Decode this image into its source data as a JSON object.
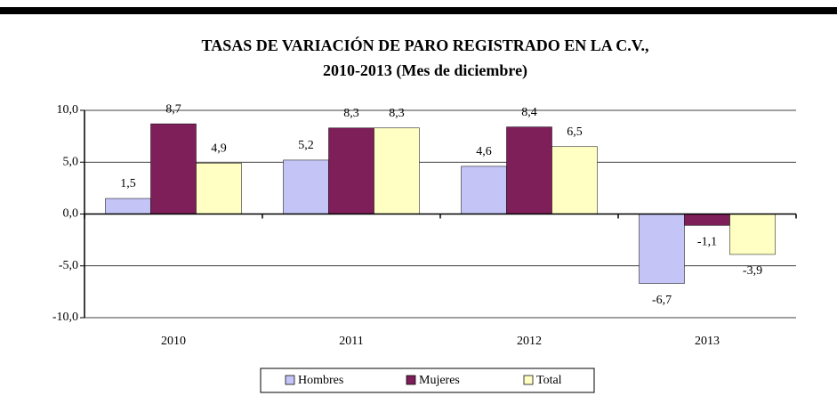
{
  "chart_data": {
    "type": "bar",
    "title": [
      "TASAS DE VARIACIÓN DE PARO REGISTRADO EN LA C.V.,",
      "2010-2013 (Mes de diciembre)"
    ],
    "categories": [
      "2010",
      "2011",
      "2012",
      "2013"
    ],
    "series": [
      {
        "name": "Hombres",
        "color": "#c4c4f6",
        "values": [
          1.5,
          5.2,
          4.6,
          -6.7
        ],
        "value_labels": [
          "1,5",
          "5,2",
          "4,6",
          "-6,7"
        ]
      },
      {
        "name": "Mujeres",
        "color": "#7f1f5a",
        "values": [
          8.7,
          8.3,
          8.4,
          -1.1
        ],
        "value_labels": [
          "8,7",
          "8,3",
          "8,4",
          "-1,1"
        ]
      },
      {
        "name": "Total",
        "color": "#ffffc4",
        "values": [
          4.9,
          8.3,
          6.5,
          -3.9
        ],
        "value_labels": [
          "4,9",
          "8,3",
          "6,5",
          "-3,9"
        ]
      }
    ],
    "ylim": [
      -10,
      10
    ],
    "yticks": [
      {
        "value": 10,
        "label": "10,0"
      },
      {
        "value": 5,
        "label": "5,0"
      },
      {
        "value": 0,
        "label": "0,0"
      },
      {
        "value": -5,
        "label": "-5,0"
      },
      {
        "value": -10,
        "label": "-10,0"
      }
    ],
    "grid": true,
    "legend": "bottom"
  }
}
